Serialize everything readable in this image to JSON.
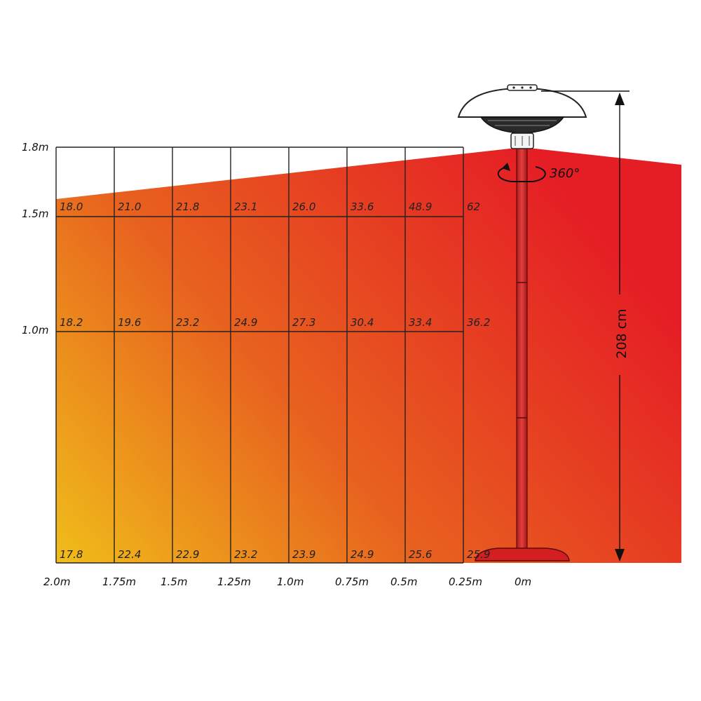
{
  "chart_data": {
    "type": "heatmap",
    "x_labels": [
      "2.0m",
      "1.75m",
      "1.5m",
      "1.25m",
      "1.0m",
      "0.75m",
      "0.5m",
      "0.25m",
      "0m"
    ],
    "y_labels": [
      "1.8m",
      "1.5m",
      "1.0m"
    ],
    "rows": [
      {
        "height": "1.5m",
        "values": [
          "18.0",
          "21.0",
          "21.8",
          "23.1",
          "26.0",
          "33.6",
          "48.9",
          "62"
        ]
      },
      {
        "height": "1.0m",
        "values": [
          "18.2",
          "19.6",
          "23.2",
          "24.9",
          "27.3",
          "30.4",
          "33.4",
          "36.2"
        ]
      },
      {
        "height": "0m",
        "values": [
          "17.8",
          "22.4",
          "22.9",
          "23.2",
          "23.9",
          "24.9",
          "25.6",
          "25.9"
        ]
      }
    ]
  },
  "annotations": {
    "rotation_label": "360°",
    "height_label": "208 cm"
  },
  "colors": {
    "hot": "#e51e25",
    "mid": "#e8611f",
    "warm": "#f0bd1a",
    "grid": "#222222"
  }
}
